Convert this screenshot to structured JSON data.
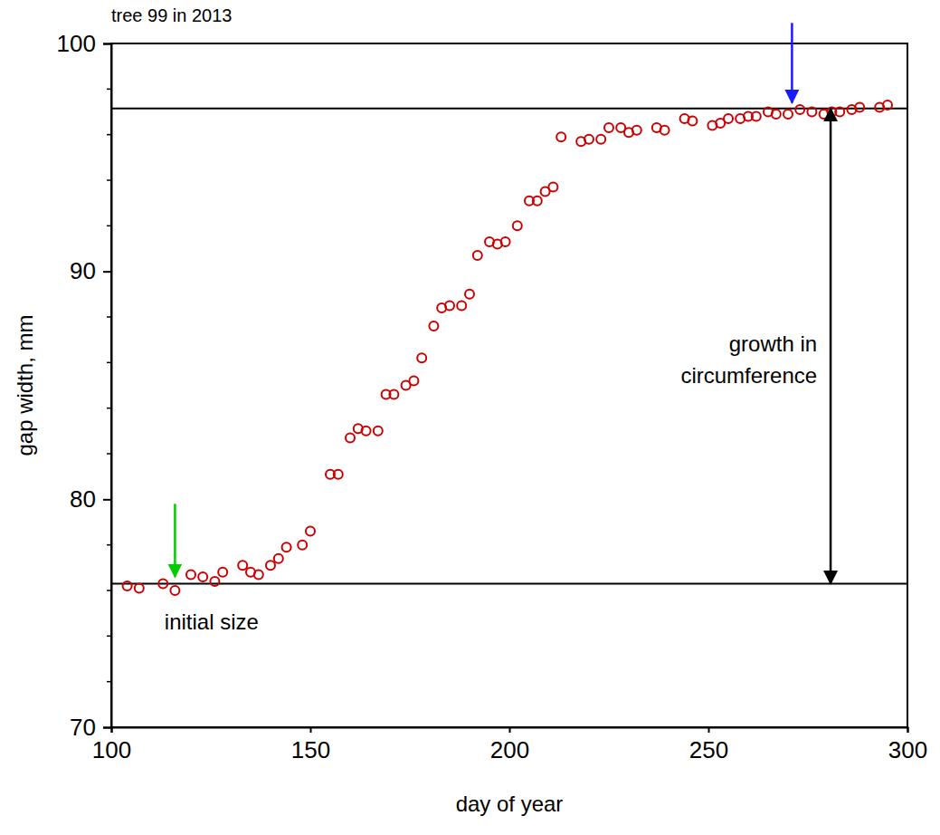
{
  "chart_data": {
    "type": "scatter",
    "title": "tree 99 in 2013",
    "x_label": "day of year",
    "y_label": "gap width, mm",
    "x": [
      104,
      107,
      113,
      116,
      120,
      123,
      126,
      128,
      133,
      135,
      137,
      140,
      142,
      144,
      148,
      150,
      155,
      157,
      160,
      162,
      164,
      167,
      169,
      171,
      174,
      176,
      178,
      181,
      183,
      185,
      188,
      190,
      192,
      195,
      197,
      199,
      202,
      205,
      207,
      209,
      211,
      213,
      218,
      220,
      223,
      225,
      228,
      230,
      232,
      237,
      239,
      244,
      246,
      251,
      253,
      255,
      258,
      260,
      262,
      265,
      267,
      270,
      273,
      276,
      279,
      281,
      283,
      286,
      288,
      293,
      295
    ],
    "values": [
      76.2,
      76.1,
      76.3,
      76.0,
      76.7,
      76.6,
      76.4,
      76.8,
      77.1,
      76.8,
      76.7,
      77.1,
      77.4,
      77.9,
      78.0,
      78.6,
      81.1,
      81.1,
      82.7,
      83.1,
      83.0,
      83.0,
      84.6,
      84.6,
      85.0,
      85.2,
      86.2,
      87.6,
      88.4,
      88.5,
      88.5,
      89.0,
      90.7,
      91.3,
      91.2,
      91.3,
      92.0,
      93.1,
      93.1,
      93.5,
      93.7,
      95.9,
      95.7,
      95.8,
      95.8,
      96.3,
      96.3,
      96.1,
      96.2,
      96.3,
      96.2,
      96.7,
      96.6,
      96.4,
      96.5,
      96.7,
      96.7,
      96.8,
      96.8,
      97.0,
      96.9,
      96.9,
      97.1,
      97.0,
      96.9,
      97.0,
      97.0,
      97.1,
      97.2,
      97.2,
      97.3
    ],
    "color": "#cc0000",
    "marker": "circle-open",
    "xlim": [
      100,
      300
    ],
    "ylim": [
      70,
      100
    ],
    "xticks": [
      100,
      150,
      200,
      250,
      300
    ],
    "yticks": [
      70,
      80,
      90,
      100
    ],
    "y_minor_ticks": [
      72,
      74,
      76,
      78,
      82,
      84,
      86,
      88,
      92,
      94,
      96,
      98
    ],
    "hlines": [
      97.15,
      76.3
    ],
    "arrows": [
      {
        "x": 116,
        "y_from": 79.8,
        "y_to": 76.6,
        "color": "#00cc00",
        "marker": "arrow"
      },
      {
        "x": 271,
        "y_from": 100.9,
        "y_to": 97.4,
        "color": "#1a1aff",
        "marker": "arrow"
      },
      {
        "x": 280.7,
        "y_from": 97.15,
        "y_to": 76.3,
        "color": "#000000",
        "marker": "double-arrow"
      }
    ],
    "annotations": [
      {
        "lines": [
          "initial size"
        ],
        "x": 125.2,
        "y": 74.3,
        "align": "middle"
      },
      {
        "lines": [
          "growth in",
          "circumference"
        ],
        "x": 277.3,
        "y": 86.5,
        "align": "end"
      }
    ]
  }
}
